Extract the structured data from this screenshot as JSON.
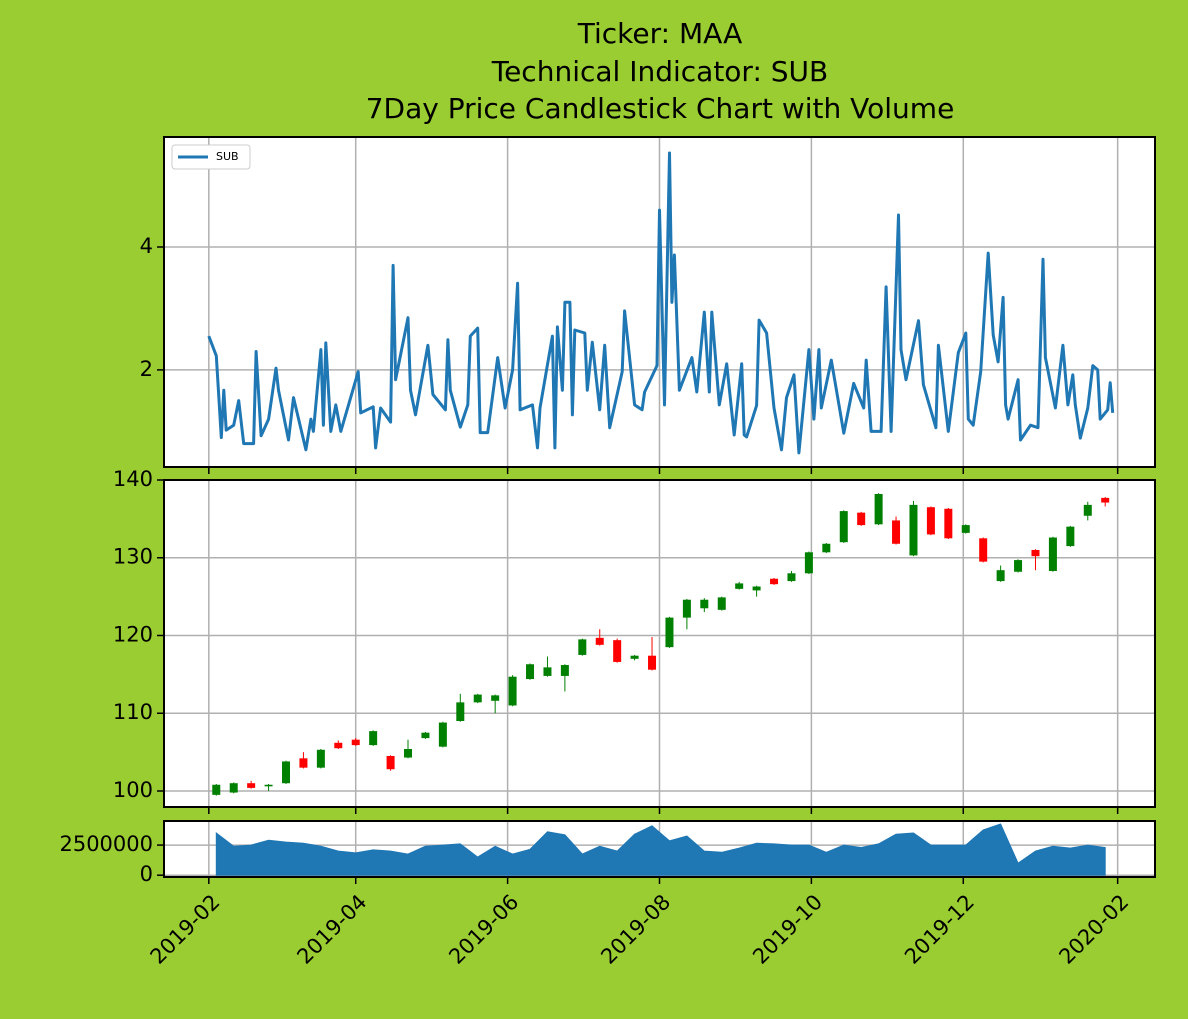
{
  "title": [
    "Ticker: MAA",
    "Technical Indicator: SUB",
    "7Day Price Candlestick Chart with Volume"
  ],
  "chart_data": [
    {
      "type": "line",
      "legend": "upper left",
      "grid": true,
      "xlim": [
        "2019-01-14",
        "2020-02-16"
      ],
      "ylim": [
        0.42,
        5.79
      ],
      "yticks": [
        2,
        4
      ],
      "x": [
        "2019-02-01",
        "2019-02-04",
        "2019-02-06",
        "2019-02-07",
        "2019-02-08",
        "2019-02-11",
        "2019-02-13",
        "2019-02-15",
        "2019-02-19",
        "2019-02-20",
        "2019-02-22",
        "2019-02-25",
        "2019-02-28",
        "2019-03-01",
        "2019-03-05",
        "2019-03-07",
        "2019-03-12",
        "2019-03-14",
        "2019-03-15",
        "2019-03-18",
        "2019-03-19",
        "2019-03-20",
        "2019-03-22",
        "2019-03-24",
        "2019-03-26",
        "2019-04-02",
        "2019-04-03",
        "2019-04-08",
        "2019-04-09",
        "2019-04-11",
        "2019-04-15",
        "2019-04-16",
        "2019-04-17",
        "2019-04-22",
        "2019-04-23",
        "2019-04-25",
        "2019-04-30",
        "2019-05-02",
        "2019-05-07",
        "2019-05-08",
        "2019-05-09",
        "2019-05-13",
        "2019-05-16",
        "2019-05-17",
        "2019-05-20",
        "2019-05-21",
        "2019-05-24",
        "2019-05-28",
        "2019-05-31",
        "2019-06-03",
        "2019-06-05",
        "2019-06-06",
        "2019-06-11",
        "2019-06-13",
        "2019-06-14",
        "2019-06-19",
        "2019-06-20",
        "2019-06-21",
        "2019-06-23",
        "2019-06-24",
        "2019-06-26",
        "2019-06-27",
        "2019-06-28",
        "2019-07-02",
        "2019-07-03",
        "2019-07-05",
        "2019-07-08",
        "2019-07-10",
        "2019-07-12",
        "2019-07-17",
        "2019-07-18",
        "2019-07-22",
        "2019-07-25",
        "2019-07-26",
        "2019-07-31",
        "2019-08-01",
        "2019-08-03",
        "2019-08-05",
        "2019-08-06",
        "2019-08-07",
        "2019-08-09",
        "2019-08-14",
        "2019-08-16",
        "2019-08-19",
        "2019-08-21",
        "2019-08-22",
        "2019-08-25",
        "2019-08-28",
        "2019-08-31",
        "2019-09-03",
        "2019-09-04",
        "2019-09-05",
        "2019-09-09",
        "2019-09-10",
        "2019-09-13",
        "2019-09-16",
        "2019-09-19",
        "2019-09-21",
        "2019-09-24",
        "2019-09-26",
        "2019-09-30",
        "2019-10-02",
        "2019-10-04",
        "2019-10-05",
        "2019-10-09",
        "2019-10-14",
        "2019-10-18",
        "2019-10-22",
        "2019-10-23",
        "2019-10-25",
        "2019-10-29",
        "2019-10-31",
        "2019-11-02",
        "2019-11-05",
        "2019-11-06",
        "2019-11-08",
        "2019-11-13",
        "2019-11-15",
        "2019-11-20",
        "2019-11-21",
        "2019-11-25",
        "2019-11-29",
        "2019-12-02",
        "2019-12-03",
        "2019-12-05",
        "2019-12-08",
        "2019-12-11",
        "2019-12-13",
        "2019-12-15",
        "2019-12-17",
        "2019-12-18",
        "2019-12-19",
        "2019-12-23",
        "2019-12-24",
        "2019-12-28",
        "2019-12-31",
        "2020-01-02",
        "2020-01-03",
        "2020-01-07",
        "2020-01-10",
        "2020-01-12",
        "2020-01-14",
        "2020-01-15",
        "2020-01-17",
        "2020-01-20",
        "2020-01-22",
        "2020-01-24",
        "2020-01-25",
        "2020-01-28",
        "2020-01-29",
        "2020-01-30"
      ],
      "series": [
        {
          "name": "SUB",
          "color": "#1f77b4",
          "values": [
            2.55,
            2.23,
            0.9,
            1.67,
            1.02,
            1.1,
            1.5,
            0.8,
            0.8,
            2.3,
            0.93,
            1.2,
            2.03,
            1.67,
            0.86,
            1.55,
            0.7,
            1.2,
            1.0,
            2.33,
            1.1,
            2.44,
            1.0,
            1.43,
            1.0,
            1.97,
            1.3,
            1.4,
            0.73,
            1.38,
            1.15,
            3.7,
            1.84,
            2.85,
            1.67,
            1.27,
            2.4,
            1.6,
            1.35,
            2.49,
            1.67,
            1.07,
            1.43,
            2.55,
            2.68,
            0.98,
            0.98,
            2.2,
            1.38,
            2.0,
            3.41,
            1.35,
            1.43,
            0.73,
            1.38,
            2.55,
            0.73,
            2.7,
            1.67,
            3.1,
            3.1,
            1.27,
            2.65,
            2.6,
            1.67,
            2.45,
            1.35,
            2.4,
            1.06,
            1.97,
            2.96,
            1.43,
            1.35,
            1.64,
            2.07,
            4.6,
            1.43,
            5.53,
            3.1,
            3.87,
            1.67,
            2.2,
            1.64,
            2.94,
            1.64,
            2.94,
            1.43,
            2.1,
            0.94,
            2.1,
            0.94,
            0.91,
            1.42,
            2.81,
            2.6,
            1.38,
            0.7,
            1.55,
            1.92,
            0.65,
            2.33,
            1.2,
            2.33,
            1.38,
            2.16,
            0.97,
            1.78,
            1.38,
            2.16,
            1.0,
            1.0,
            3.35,
            1.0,
            4.52,
            2.33,
            1.84,
            2.8,
            1.76,
            1.06,
            2.4,
            1.0,
            2.28,
            2.6,
            1.2,
            1.1,
            1.97,
            3.9,
            2.57,
            2.13,
            3.18,
            1.43,
            1.2,
            1.84,
            0.86,
            1.1,
            1.06,
            3.8,
            2.2,
            1.38,
            2.4,
            1.43,
            1.92,
            1.43,
            0.89,
            1.38,
            2.07,
            2.0,
            1.2,
            1.35,
            1.79,
            1.3
          ]
        }
      ]
    },
    {
      "type": "candlestick",
      "grid": true,
      "up_color": "green",
      "down_color": "red",
      "xlim": [
        "2019-01-14",
        "2020-02-16"
      ],
      "ylim": [
        97.94,
        140
      ],
      "yticks": [
        100,
        110,
        120,
        130,
        140
      ],
      "x": [
        "2019-02-04",
        "2019-02-11",
        "2019-02-18",
        "2019-02-25",
        "2019-03-04",
        "2019-03-11",
        "2019-03-18",
        "2019-03-25",
        "2019-04-01",
        "2019-04-08",
        "2019-04-15",
        "2019-04-22",
        "2019-04-29",
        "2019-05-06",
        "2019-05-13",
        "2019-05-20",
        "2019-05-27",
        "2019-06-03",
        "2019-06-10",
        "2019-06-17",
        "2019-06-24",
        "2019-07-01",
        "2019-07-08",
        "2019-07-15",
        "2019-07-22",
        "2019-07-29",
        "2019-08-05",
        "2019-08-12",
        "2019-08-19",
        "2019-08-26",
        "2019-09-02",
        "2019-09-09",
        "2019-09-16",
        "2019-09-23",
        "2019-09-30",
        "2019-10-07",
        "2019-10-14",
        "2019-10-21",
        "2019-10-28",
        "2019-11-04",
        "2019-11-11",
        "2019-11-18",
        "2019-11-25",
        "2019-12-02",
        "2019-12-09",
        "2019-12-16",
        "2019-12-23",
        "2019-12-30",
        "2020-01-06",
        "2020-01-13",
        "2020-01-20",
        "2020-01-27"
      ],
      "open": [
        99.5,
        99.8,
        101.0,
        100.6,
        101.0,
        104.2,
        103.0,
        106.2,
        106.6,
        105.9,
        104.5,
        104.3,
        106.8,
        105.7,
        109.0,
        111.4,
        111.6,
        111.0,
        114.4,
        114.8,
        114.8,
        117.5,
        119.7,
        119.4,
        117.0,
        117.4,
        118.5,
        122.3,
        123.5,
        123.3,
        126.0,
        125.8,
        127.3,
        127.0,
        128.0,
        130.7,
        132.0,
        135.8,
        134.3,
        134.8,
        130.3,
        136.5,
        136.3,
        133.2,
        132.5,
        127.0,
        128.2,
        131.0,
        128.3,
        131.5,
        135.4,
        137.7
      ],
      "high": [
        100.9,
        101.1,
        101.3,
        100.9,
        103.9,
        105.0,
        105.4,
        106.5,
        106.8,
        107.8,
        104.6,
        106.6,
        107.6,
        108.9,
        112.5,
        112.5,
        112.4,
        114.9,
        116.4,
        117.3,
        116.3,
        119.6,
        120.8,
        119.6,
        117.5,
        119.8,
        122.4,
        124.7,
        124.8,
        125.0,
        126.9,
        126.4,
        127.4,
        128.3,
        130.8,
        131.9,
        136.1,
        135.9,
        138.3,
        135.3,
        137.3,
        136.6,
        136.4,
        134.3,
        132.6,
        129.0,
        129.8,
        131.1,
        132.7,
        134.1,
        137.2,
        137.8
      ],
      "low": [
        99.4,
        99.7,
        100.3,
        100.0,
        100.9,
        102.9,
        102.9,
        105.4,
        105.8,
        105.8,
        102.6,
        104.2,
        106.7,
        105.6,
        108.9,
        111.3,
        110.0,
        110.9,
        114.3,
        114.7,
        112.8,
        117.4,
        118.7,
        116.5,
        116.8,
        115.5,
        118.4,
        120.8,
        123.0,
        123.2,
        125.9,
        125.0,
        126.5,
        126.9,
        127.9,
        130.6,
        131.9,
        134.1,
        134.2,
        131.7,
        130.2,
        132.9,
        132.4,
        133.1,
        129.4,
        126.9,
        128.1,
        128.4,
        128.2,
        131.4,
        134.8,
        136.6
      ],
      "close": [
        100.8,
        101.0,
        100.4,
        100.8,
        103.8,
        103.0,
        105.3,
        105.5,
        105.9,
        107.7,
        102.8,
        105.4,
        107.5,
        108.8,
        111.4,
        112.4,
        112.3,
        114.7,
        116.3,
        115.9,
        116.2,
        119.5,
        118.8,
        116.6,
        117.4,
        115.6,
        122.3,
        124.6,
        124.6,
        124.9,
        126.7,
        126.3,
        126.6,
        128.0,
        130.7,
        131.8,
        136.0,
        134.2,
        138.2,
        131.8,
        136.8,
        133.0,
        132.5,
        134.2,
        129.5,
        128.4,
        129.7,
        130.2,
        132.6,
        134.0,
        136.8,
        137.1
      ]
    },
    {
      "type": "area",
      "grid": true,
      "color": "#1f77b4",
      "xlim": [
        "2019-01-14",
        "2020-02-16"
      ],
      "xticks": [
        {
          "value": "2019-02-01",
          "label": "2019-02"
        },
        {
          "value": "2019-04-01",
          "label": "2019-04"
        },
        {
          "value": "2019-06-01",
          "label": "2019-06"
        },
        {
          "value": "2019-08-01",
          "label": "2019-08"
        },
        {
          "value": "2019-10-01",
          "label": "2019-10"
        },
        {
          "value": "2019-12-01",
          "label": "2019-12"
        },
        {
          "value": "2020-02-01",
          "label": "2020-02"
        }
      ],
      "ylim": [
        -150000,
        4500000
      ],
      "yticks": [
        0,
        2500000
      ],
      "x": [
        "2019-02-04",
        "2019-02-11",
        "2019-02-18",
        "2019-02-25",
        "2019-03-04",
        "2019-03-11",
        "2019-03-18",
        "2019-03-25",
        "2019-04-01",
        "2019-04-08",
        "2019-04-15",
        "2019-04-22",
        "2019-04-29",
        "2019-05-06",
        "2019-05-13",
        "2019-05-20",
        "2019-05-27",
        "2019-06-03",
        "2019-06-10",
        "2019-06-17",
        "2019-06-24",
        "2019-07-01",
        "2019-07-08",
        "2019-07-15",
        "2019-07-22",
        "2019-07-29",
        "2019-08-05",
        "2019-08-12",
        "2019-08-19",
        "2019-08-26",
        "2019-09-02",
        "2019-09-09",
        "2019-09-16",
        "2019-09-23",
        "2019-09-30",
        "2019-10-07",
        "2019-10-14",
        "2019-10-21",
        "2019-10-28",
        "2019-11-04",
        "2019-11-11",
        "2019-11-18",
        "2019-11-25",
        "2019-12-02",
        "2019-12-09",
        "2019-12-16",
        "2019-12-23",
        "2019-12-30",
        "2020-01-06",
        "2020-01-13",
        "2020-01-20",
        "2020-01-27"
      ],
      "values": [
        3500000,
        2400000,
        2500000,
        2900000,
        2750000,
        2650000,
        2400000,
        2000000,
        1850000,
        2100000,
        2000000,
        1750000,
        2400000,
        2500000,
        2600000,
        1500000,
        2400000,
        1750000,
        2150000,
        3600000,
        3350000,
        1750000,
        2400000,
        2000000,
        3400000,
        4100000,
        2850000,
        3250000,
        2000000,
        1900000,
        2250000,
        2650000,
        2600000,
        2500000,
        2500000,
        1900000,
        2500000,
        2300000,
        2600000,
        3400000,
        3500000,
        2500000,
        2500000,
        2500000,
        3750000,
        4250000,
        1000000,
        2000000,
        2400000,
        2250000,
        2500000,
        2300000
      ]
    }
  ]
}
